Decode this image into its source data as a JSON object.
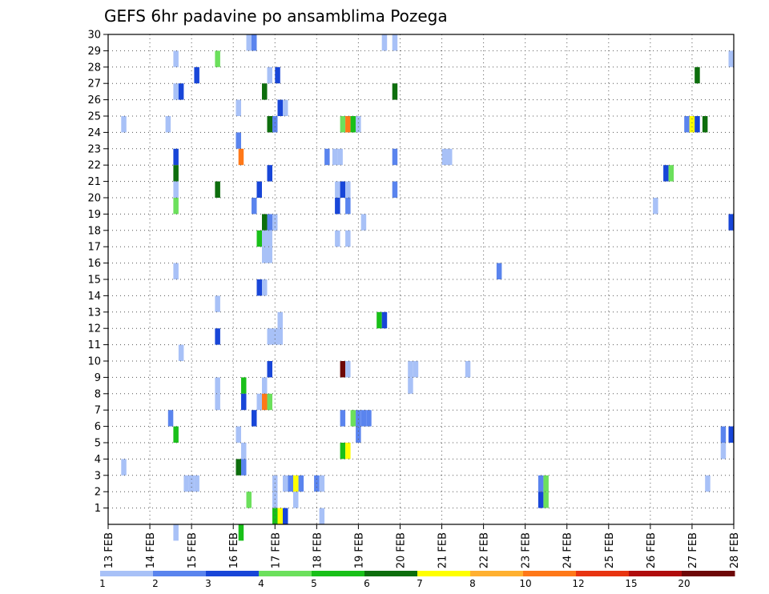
{
  "chart_data": {
    "type": "heatmap",
    "title": "GEFS 6hr padavine po ansamblima Pozega",
    "xlabel": "",
    "ylabel": "",
    "x_ticks": [
      "13 FEB",
      "14 FEB",
      "15 FEB",
      "16 FEB",
      "17 FEB",
      "18 FEB",
      "19 FEB",
      "20 FEB",
      "21 FEB",
      "22 FEB",
      "23 FEB",
      "24 FEB",
      "25 FEB",
      "26 FEB",
      "27 FEB",
      "28 FEB"
    ],
    "y_ticks": [
      1,
      2,
      3,
      4,
      5,
      6,
      7,
      8,
      9,
      10,
      11,
      12,
      13,
      14,
      15,
      16,
      17,
      18,
      19,
      20,
      21,
      22,
      23,
      24,
      25,
      26,
      27,
      28,
      29,
      30
    ],
    "xlim": [
      0,
      60
    ],
    "ylim": [
      0,
      30
    ],
    "grid": true,
    "legend_position": "bottom",
    "legend": {
      "labels": [
        "1",
        "2",
        "3",
        "4",
        "5",
        "6",
        "7",
        "8",
        "10",
        "12",
        "15",
        "20"
      ],
      "colors": [
        "#a8c1f7",
        "#5a84ee",
        "#1846d8",
        "#6ce05c",
        "#19c019",
        "#0d6e0d",
        "#ffff00",
        "#ffb030",
        "#ff7818",
        "#e83410",
        "#b00c0c",
        "#6e0808"
      ]
    },
    "cells": [
      [
        13.5,
        29.5,
        1
      ],
      [
        14,
        29.5,
        2
      ],
      [
        26.5,
        29.5,
        1
      ],
      [
        27.5,
        29.5,
        1
      ],
      [
        6.5,
        28.5,
        1
      ],
      [
        10.5,
        28.5,
        4
      ],
      [
        59.75,
        28.5,
        1
      ],
      [
        8.5,
        27.5,
        3
      ],
      [
        15.5,
        27.5,
        1
      ],
      [
        16.25,
        27.5,
        3
      ],
      [
        56.5,
        27.5,
        6
      ],
      [
        6.5,
        26.5,
        1
      ],
      [
        7,
        26.5,
        3
      ],
      [
        15,
        26.5,
        6
      ],
      [
        27.5,
        26.5,
        6
      ],
      [
        12.5,
        25.5,
        1
      ],
      [
        16.5,
        25.5,
        3
      ],
      [
        17,
        25.5,
        1
      ],
      [
        1.5,
        24.5,
        1
      ],
      [
        5.75,
        24.5,
        1
      ],
      [
        15.5,
        24.5,
        6
      ],
      [
        16,
        24.5,
        2
      ],
      [
        22.5,
        24.5,
        4
      ],
      [
        23,
        24.5,
        9
      ],
      [
        23.5,
        24.5,
        5
      ],
      [
        24,
        24.5,
        1
      ],
      [
        55.5,
        24.5,
        2
      ],
      [
        56,
        24.5,
        7
      ],
      [
        56.5,
        24.5,
        3
      ],
      [
        57.25,
        24.5,
        6
      ],
      [
        12.5,
        23.5,
        2
      ],
      [
        6.5,
        22.5,
        3
      ],
      [
        12.75,
        22.5,
        9
      ],
      [
        21,
        22.5,
        2
      ],
      [
        21.75,
        22.5,
        1
      ],
      [
        22.25,
        22.5,
        1
      ],
      [
        27.5,
        22.5,
        2
      ],
      [
        32.25,
        22.5,
        1
      ],
      [
        32.75,
        22.5,
        1
      ],
      [
        6.5,
        21.5,
        6
      ],
      [
        15.5,
        21.5,
        3
      ],
      [
        53.5,
        21.5,
        3
      ],
      [
        54,
        21.5,
        4
      ],
      [
        6.5,
        20.5,
        1
      ],
      [
        10.5,
        20.5,
        6
      ],
      [
        14.5,
        20.5,
        3
      ],
      [
        22,
        20.5,
        1
      ],
      [
        22.5,
        20.5,
        3
      ],
      [
        23,
        20.5,
        1
      ],
      [
        27.5,
        20.5,
        2
      ],
      [
        6.5,
        19.5,
        4
      ],
      [
        14,
        19.5,
        2
      ],
      [
        22,
        19.5,
        3
      ],
      [
        23,
        19.5,
        2
      ],
      [
        52.5,
        19.5,
        1
      ],
      [
        15,
        18.5,
        6
      ],
      [
        15.5,
        18.5,
        2
      ],
      [
        16,
        18.5,
        1
      ],
      [
        24.5,
        18.5,
        1
      ],
      [
        59.75,
        18.5,
        3
      ],
      [
        14.5,
        17.5,
        5
      ],
      [
        15,
        17.5,
        1
      ],
      [
        15.5,
        17.5,
        1
      ],
      [
        22,
        17.5,
        1
      ],
      [
        23,
        17.5,
        1
      ],
      [
        15,
        16.5,
        1
      ],
      [
        15.5,
        16.5,
        1
      ],
      [
        6.5,
        15.5,
        1
      ],
      [
        37.5,
        15.5,
        2
      ],
      [
        14.5,
        14.5,
        3
      ],
      [
        15,
        14.5,
        1
      ],
      [
        10.5,
        13.5,
        1
      ],
      [
        16.5,
        12.5,
        1
      ],
      [
        26,
        12.5,
        5
      ],
      [
        26.5,
        12.5,
        3
      ],
      [
        15.5,
        11.5,
        1
      ],
      [
        16,
        11.5,
        1
      ],
      [
        16.5,
        11.5,
        1
      ],
      [
        10.5,
        11.5,
        3
      ],
      [
        7,
        10.5,
        1
      ],
      [
        15.5,
        9.5,
        3
      ],
      [
        22.5,
        9.5,
        12
      ],
      [
        23,
        9.5,
        1
      ],
      [
        29,
        9.5,
        1
      ],
      [
        29.5,
        9.5,
        1
      ],
      [
        34.5,
        9.5,
        1
      ],
      [
        10.5,
        8.5,
        1
      ],
      [
        13,
        8.5,
        5
      ],
      [
        29,
        8.5,
        1
      ],
      [
        15,
        8.5,
        1
      ],
      [
        10.5,
        7.5,
        1
      ],
      [
        13,
        7.5,
        3
      ],
      [
        14.5,
        7.5,
        1
      ],
      [
        15,
        7.5,
        9
      ],
      [
        15.5,
        7.5,
        4
      ],
      [
        6,
        6.5,
        2
      ],
      [
        14,
        6.5,
        3
      ],
      [
        22.5,
        6.5,
        2
      ],
      [
        23.5,
        6.5,
        4
      ],
      [
        24,
        6.5,
        2
      ],
      [
        24.5,
        6.5,
        2
      ],
      [
        25,
        6.5,
        2
      ],
      [
        6.5,
        5.5,
        5
      ],
      [
        12.5,
        5.5,
        1
      ],
      [
        24,
        5.5,
        2
      ],
      [
        59,
        5.5,
        2
      ],
      [
        59.75,
        5.5,
        3
      ],
      [
        13,
        4.5,
        1
      ],
      [
        22.5,
        4.5,
        5
      ],
      [
        23,
        4.5,
        7
      ],
      [
        59,
        4.5,
        1
      ],
      [
        1.5,
        3.5,
        1
      ],
      [
        12.5,
        3.5,
        6
      ],
      [
        13,
        3.5,
        2
      ],
      [
        7.5,
        2.5,
        1
      ],
      [
        8,
        2.5,
        1
      ],
      [
        8.5,
        2.5,
        1
      ],
      [
        16,
        2.5,
        1
      ],
      [
        17,
        2.5,
        1
      ],
      [
        17.5,
        2.5,
        2
      ],
      [
        18,
        2.5,
        7
      ],
      [
        18.5,
        2.5,
        2
      ],
      [
        20,
        2.5,
        2
      ],
      [
        20.5,
        2.5,
        1
      ],
      [
        41.5,
        2.5,
        2
      ],
      [
        42,
        2.5,
        4
      ],
      [
        57.5,
        2.5,
        1
      ],
      [
        16,
        1.5,
        1
      ],
      [
        13.5,
        1.5,
        4
      ],
      [
        18,
        1.5,
        1
      ],
      [
        41.5,
        1.5,
        3
      ],
      [
        42,
        1.5,
        4
      ],
      [
        16,
        0.5,
        5
      ],
      [
        16.5,
        0.5,
        7
      ],
      [
        17,
        0.5,
        3
      ],
      [
        20.5,
        0.5,
        1
      ],
      [
        6.5,
        -0.5,
        1
      ],
      [
        12.75,
        -0.5,
        5
      ]
    ]
  }
}
